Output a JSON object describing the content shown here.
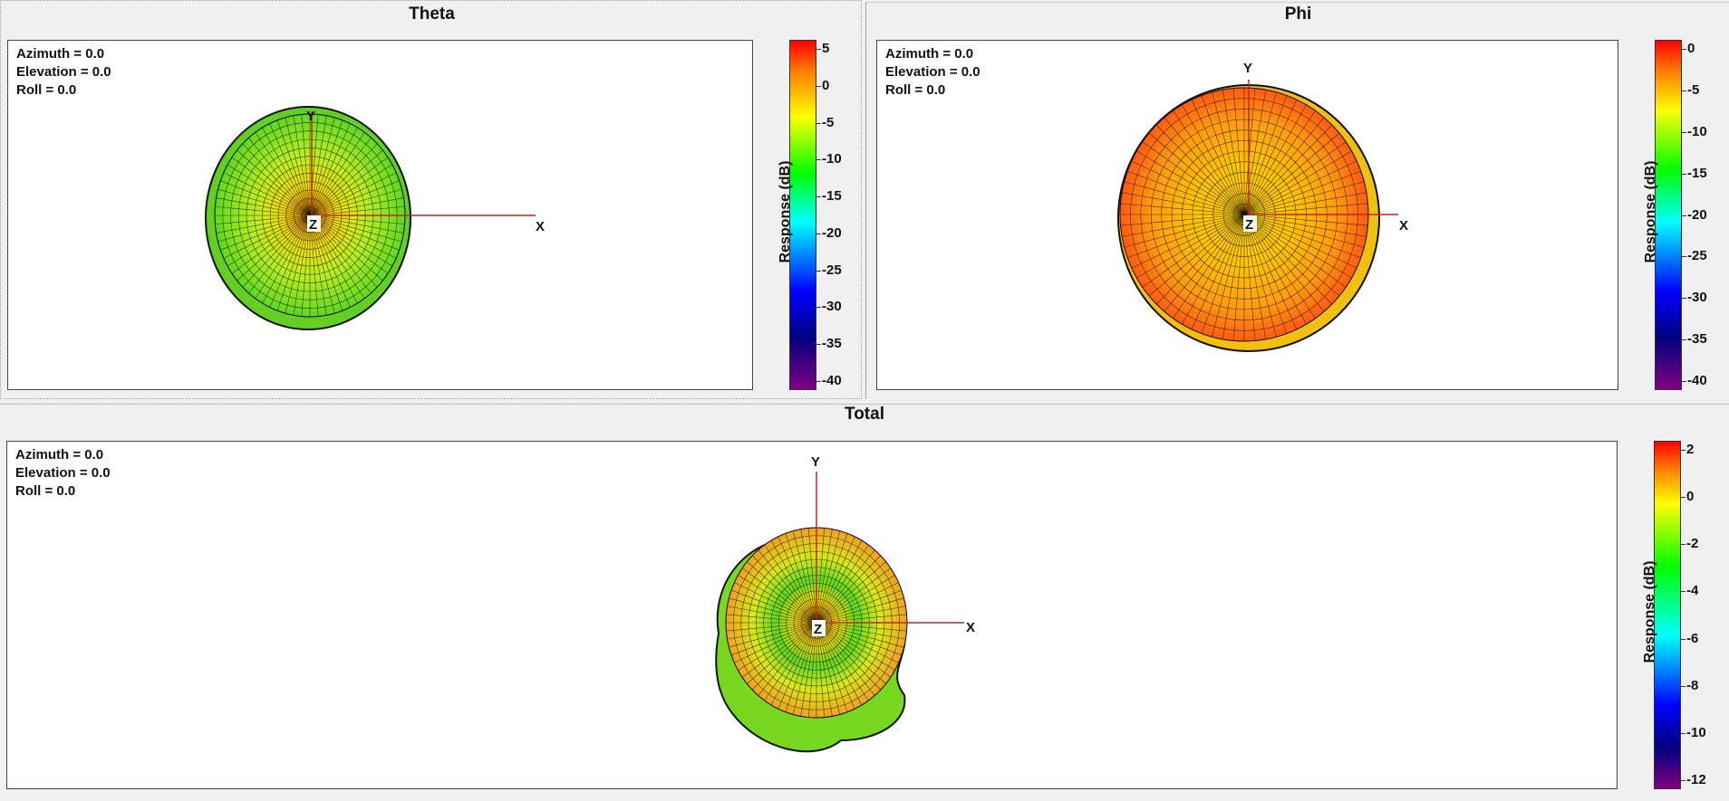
{
  "panels": {
    "theta": {
      "title": "Theta",
      "azimuth": "Azimuth = 0.0",
      "elevation": "Elevation = 0.0",
      "roll": "Roll = 0.0",
      "colorbar_label": "Response  (dB)",
      "ticks": [
        "5",
        "0",
        "-5",
        "-10",
        "-15",
        "-20",
        "-25",
        "-30",
        "-35",
        "-40"
      ],
      "axis_x": "X",
      "axis_y": "Y",
      "axis_z": "Z"
    },
    "phi": {
      "title": "Phi",
      "azimuth": "Azimuth = 0.0",
      "elevation": "Elevation = 0.0",
      "roll": "Roll = 0.0",
      "colorbar_label": "Response  (dB)",
      "ticks": [
        "0",
        "-5",
        "-10",
        "-15",
        "-20",
        "-25",
        "-30",
        "-35",
        "-40"
      ],
      "axis_x": "X",
      "axis_y": "Y",
      "axis_z": "Z"
    },
    "total": {
      "title": "Total",
      "azimuth": "Azimuth = 0.0",
      "elevation": "Elevation = 0.0",
      "roll": "Roll = 0.0",
      "colorbar_label": "Response  (dB)",
      "ticks": [
        "2",
        "0",
        "-2",
        "-4",
        "-6",
        "-8",
        "-10",
        "-12"
      ],
      "axis_x": "X",
      "axis_y": "Y",
      "axis_z": "Z"
    }
  },
  "colors": {
    "axis_line": "#cc2222",
    "mesh_line": "#111111",
    "colormap": [
      "#ff0000",
      "#ff8000",
      "#ffff00",
      "#00ff00",
      "#00ffff",
      "#0080ff",
      "#0000ff",
      "#000080",
      "#800080"
    ]
  }
}
